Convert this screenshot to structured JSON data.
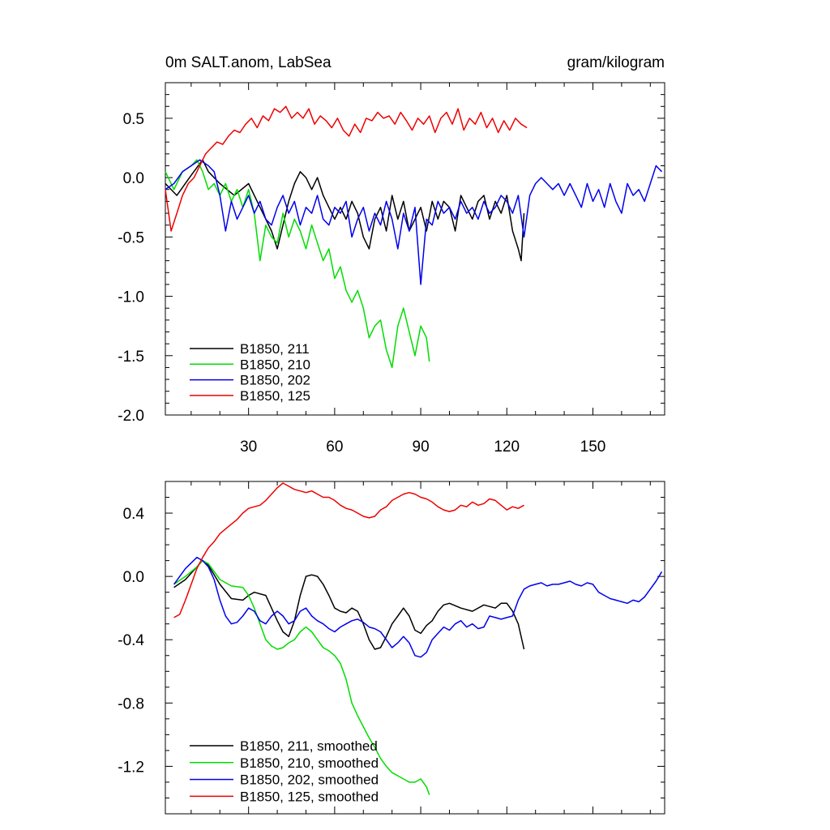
{
  "chart_data": [
    {
      "type": "line",
      "title_left": "0m SALT.anom, LabSea",
      "title_right": "gram/kilogram",
      "xlim": [
        1,
        175
      ],
      "ylim": [
        -2.0,
        0.8
      ],
      "x_ticks": [
        30,
        60,
        90,
        120,
        150
      ],
      "x_tick_labels": [
        "30",
        "60",
        "90",
        "120",
        "150"
      ],
      "y_ticks": [
        0.5,
        0.0,
        -0.5,
        -1.0,
        -1.5,
        -2.0
      ],
      "y_tick_labels": [
        "0.5",
        "0.0",
        "-0.5",
        "-1.0",
        "-1.5",
        "-2.0"
      ],
      "legend_position": "bottom-left",
      "series": [
        {
          "name": "B1850, 211",
          "color": "#000000",
          "x": [
            1,
            5,
            10,
            14,
            16,
            20,
            25,
            30,
            33,
            36,
            38,
            40,
            42,
            44,
            46,
            48,
            50,
            52,
            54,
            56,
            58,
            60,
            62,
            64,
            66,
            68,
            70,
            72,
            74,
            76,
            78,
            80,
            82,
            84,
            86,
            88,
            90,
            92,
            94,
            96,
            98,
            100,
            102,
            104,
            106,
            108,
            110,
            112,
            114,
            116,
            118,
            120,
            122,
            124,
            125,
            126
          ],
          "y": [
            -0.05,
            -0.15,
            0.02,
            0.15,
            0.05,
            -0.05,
            -0.15,
            -0.05,
            -0.2,
            -0.35,
            -0.45,
            -0.6,
            -0.4,
            -0.2,
            -0.05,
            0.05,
            0.0,
            -0.1,
            0.0,
            -0.15,
            -0.25,
            -0.35,
            -0.25,
            -0.35,
            -0.2,
            -0.3,
            -0.5,
            -0.6,
            -0.35,
            -0.25,
            -0.45,
            -0.15,
            -0.35,
            -0.2,
            -0.45,
            -0.35,
            -0.25,
            -0.45,
            -0.2,
            -0.35,
            -0.2,
            -0.25,
            -0.45,
            -0.15,
            -0.25,
            -0.35,
            -0.2,
            -0.15,
            -0.35,
            -0.2,
            -0.3,
            -0.15,
            -0.45,
            -0.6,
            -0.7,
            -0.3
          ]
        },
        {
          "name": "B1850, 210",
          "color": "#00dd00",
          "x": [
            1,
            4,
            7,
            10,
            12,
            14,
            16,
            18,
            20,
            22,
            24,
            26,
            28,
            30,
            32,
            34,
            36,
            38,
            40,
            42,
            44,
            46,
            48,
            50,
            52,
            54,
            56,
            58,
            60,
            62,
            64,
            66,
            68,
            70,
            72,
            74,
            76,
            78,
            80,
            82,
            84,
            86,
            88,
            90,
            92,
            93
          ],
          "y": [
            0.05,
            -0.1,
            0.05,
            0.1,
            0.15,
            0.05,
            -0.1,
            -0.05,
            -0.15,
            -0.05,
            -0.2,
            -0.1,
            -0.25,
            -0.1,
            -0.3,
            -0.7,
            -0.4,
            -0.5,
            -0.55,
            -0.3,
            -0.5,
            -0.35,
            -0.45,
            -0.6,
            -0.4,
            -0.55,
            -0.7,
            -0.6,
            -0.85,
            -0.75,
            -0.95,
            -1.05,
            -0.95,
            -1.1,
            -1.35,
            -1.25,
            -1.2,
            -1.45,
            -1.6,
            -1.25,
            -1.1,
            -1.3,
            -1.5,
            -1.25,
            -1.35,
            -1.55
          ]
        },
        {
          "name": "B1850, 202",
          "color": "#0000ee",
          "x": [
            1,
            4,
            7,
            10,
            13,
            16,
            18,
            20,
            22,
            24,
            26,
            28,
            30,
            32,
            34,
            36,
            38,
            40,
            42,
            44,
            46,
            48,
            50,
            52,
            54,
            56,
            58,
            60,
            62,
            64,
            66,
            68,
            70,
            72,
            74,
            76,
            78,
            80,
            82,
            84,
            86,
            88,
            90,
            92,
            94,
            96,
            98,
            100,
            102,
            104,
            106,
            108,
            110,
            112,
            114,
            116,
            118,
            120,
            122,
            124,
            126,
            128,
            130,
            132,
            134,
            136,
            138,
            140,
            142,
            144,
            146,
            148,
            150,
            152,
            154,
            156,
            158,
            160,
            162,
            164,
            166,
            168,
            170,
            172,
            174
          ],
          "y": [
            -0.1,
            -0.05,
            0.05,
            0.1,
            0.15,
            0.1,
            0.05,
            -0.15,
            -0.45,
            -0.2,
            -0.35,
            -0.25,
            -0.15,
            -0.3,
            -0.2,
            -0.35,
            -0.4,
            -0.25,
            -0.15,
            -0.3,
            -0.2,
            -0.4,
            -0.25,
            -0.3,
            -0.15,
            -0.35,
            -0.4,
            -0.25,
            -0.3,
            -0.2,
            -0.5,
            -0.35,
            -0.25,
            -0.45,
            -0.3,
            -0.4,
            -0.2,
            -0.35,
            -0.6,
            -0.3,
            -0.45,
            -0.25,
            -0.9,
            -0.35,
            -0.4,
            -0.2,
            -0.3,
            -0.25,
            -0.35,
            -0.2,
            -0.3,
            -0.25,
            -0.35,
            -0.2,
            -0.3,
            -0.25,
            -0.15,
            -0.2,
            -0.3,
            -0.15,
            -0.5,
            -0.15,
            -0.05,
            0.0,
            -0.05,
            -0.1,
            -0.05,
            -0.15,
            -0.05,
            -0.15,
            -0.25,
            -0.05,
            -0.2,
            -0.1,
            -0.25,
            -0.05,
            -0.2,
            -0.3,
            -0.05,
            -0.15,
            -0.1,
            -0.2,
            -0.05,
            0.1,
            0.05
          ]
        },
        {
          "name": "B1850, 125",
          "color": "#ee0000",
          "x": [
            1,
            3,
            5,
            7,
            9,
            11,
            13,
            15,
            17,
            19,
            21,
            23,
            25,
            27,
            29,
            31,
            33,
            35,
            37,
            39,
            41,
            43,
            45,
            47,
            49,
            51,
            53,
            55,
            57,
            59,
            61,
            63,
            65,
            67,
            69,
            71,
            73,
            75,
            77,
            79,
            81,
            83,
            85,
            87,
            89,
            91,
            93,
            95,
            97,
            99,
            101,
            103,
            105,
            107,
            109,
            111,
            113,
            115,
            117,
            119,
            121,
            123,
            125,
            127
          ],
          "y": [
            -0.1,
            -0.45,
            -0.3,
            -0.15,
            -0.05,
            0.0,
            0.1,
            0.2,
            0.25,
            0.3,
            0.28,
            0.35,
            0.4,
            0.38,
            0.45,
            0.5,
            0.42,
            0.52,
            0.48,
            0.58,
            0.55,
            0.6,
            0.5,
            0.55,
            0.5,
            0.58,
            0.45,
            0.52,
            0.48,
            0.42,
            0.5,
            0.4,
            0.35,
            0.45,
            0.38,
            0.5,
            0.48,
            0.55,
            0.5,
            0.52,
            0.45,
            0.55,
            0.48,
            0.4,
            0.5,
            0.45,
            0.52,
            0.38,
            0.5,
            0.55,
            0.45,
            0.58,
            0.4,
            0.5,
            0.45,
            0.55,
            0.42,
            0.5,
            0.38,
            0.48,
            0.4,
            0.5,
            0.45,
            0.42
          ]
        }
      ]
    },
    {
      "type": "line",
      "xlim": [
        1,
        175
      ],
      "ylim": [
        -1.5,
        0.6
      ],
      "x_ticks": [
        30,
        60,
        90,
        120,
        150
      ],
      "y_ticks": [
        0.4,
        0.0,
        -0.4,
        -0.8,
        -1.2
      ],
      "y_tick_labels": [
        "0.4",
        "0.0",
        "-0.4",
        "-0.8",
        "-1.2"
      ],
      "legend_position": "bottom-left",
      "series": [
        {
          "name": "B1850, 211, smoothed",
          "color": "#000000",
          "x": [
            4,
            8,
            12,
            14,
            16,
            20,
            24,
            28,
            30,
            32,
            36,
            40,
            42,
            44,
            46,
            48,
            50,
            52,
            54,
            56,
            58,
            60,
            62,
            64,
            66,
            68,
            70,
            72,
            74,
            76,
            78,
            80,
            82,
            84,
            86,
            88,
            90,
            92,
            94,
            96,
            98,
            100,
            104,
            108,
            112,
            116,
            118,
            120,
            122,
            124,
            126
          ],
          "y": [
            -0.07,
            -0.02,
            0.06,
            0.1,
            0.07,
            -0.05,
            -0.14,
            -0.15,
            -0.12,
            -0.1,
            -0.12,
            -0.28,
            -0.35,
            -0.38,
            -0.28,
            -0.12,
            0.0,
            0.01,
            0.0,
            -0.05,
            -0.12,
            -0.2,
            -0.22,
            -0.23,
            -0.2,
            -0.22,
            -0.3,
            -0.4,
            -0.46,
            -0.45,
            -0.38,
            -0.3,
            -0.25,
            -0.2,
            -0.25,
            -0.34,
            -0.36,
            -0.31,
            -0.28,
            -0.22,
            -0.18,
            -0.17,
            -0.2,
            -0.22,
            -0.18,
            -0.2,
            -0.17,
            -0.17,
            -0.22,
            -0.3,
            -0.46
          ]
        },
        {
          "name": "B1850, 210, smoothed",
          "color": "#00dd00",
          "x": [
            4,
            8,
            12,
            14,
            16,
            20,
            24,
            28,
            30,
            32,
            34,
            36,
            38,
            40,
            42,
            44,
            46,
            48,
            50,
            52,
            54,
            56,
            58,
            60,
            62,
            64,
            66,
            68,
            70,
            72,
            74,
            76,
            78,
            80,
            82,
            84,
            86,
            88,
            90,
            92,
            93
          ],
          "y": [
            -0.05,
            0.0,
            0.06,
            0.1,
            0.08,
            -0.02,
            -0.06,
            -0.07,
            -0.12,
            -0.2,
            -0.3,
            -0.4,
            -0.44,
            -0.46,
            -0.45,
            -0.42,
            -0.4,
            -0.35,
            -0.32,
            -0.35,
            -0.4,
            -0.45,
            -0.47,
            -0.5,
            -0.55,
            -0.65,
            -0.8,
            -0.88,
            -0.95,
            -1.02,
            -1.08,
            -1.15,
            -1.2,
            -1.24,
            -1.26,
            -1.28,
            -1.3,
            -1.3,
            -1.28,
            -1.33,
            -1.38
          ]
        },
        {
          "name": "B1850, 202, smoothed",
          "color": "#0000ee",
          "x": [
            4,
            8,
            12,
            14,
            16,
            18,
            20,
            22,
            24,
            26,
            28,
            30,
            32,
            34,
            36,
            38,
            40,
            42,
            44,
            46,
            48,
            50,
            52,
            54,
            56,
            58,
            60,
            62,
            64,
            66,
            68,
            70,
            72,
            74,
            76,
            78,
            80,
            82,
            84,
            86,
            88,
            90,
            92,
            94,
            96,
            98,
            100,
            102,
            104,
            106,
            108,
            110,
            112,
            114,
            116,
            118,
            120,
            122,
            124,
            126,
            128,
            130,
            132,
            134,
            136,
            138,
            140,
            142,
            144,
            146,
            148,
            150,
            152,
            154,
            156,
            158,
            160,
            162,
            164,
            166,
            168,
            170,
            172,
            174
          ],
          "y": [
            -0.05,
            0.05,
            0.12,
            0.1,
            0.06,
            -0.02,
            -0.15,
            -0.25,
            -0.3,
            -0.29,
            -0.25,
            -0.2,
            -0.22,
            -0.28,
            -0.3,
            -0.25,
            -0.22,
            -0.25,
            -0.3,
            -0.28,
            -0.22,
            -0.2,
            -0.25,
            -0.28,
            -0.3,
            -0.33,
            -0.35,
            -0.32,
            -0.3,
            -0.28,
            -0.27,
            -0.29,
            -0.32,
            -0.33,
            -0.35,
            -0.4,
            -0.45,
            -0.42,
            -0.38,
            -0.42,
            -0.5,
            -0.51,
            -0.48,
            -0.4,
            -0.36,
            -0.32,
            -0.34,
            -0.3,
            -0.28,
            -0.32,
            -0.3,
            -0.33,
            -0.32,
            -0.25,
            -0.26,
            -0.27,
            -0.26,
            -0.25,
            -0.15,
            -0.08,
            -0.06,
            -0.05,
            -0.04,
            -0.06,
            -0.05,
            -0.05,
            -0.04,
            -0.03,
            -0.05,
            -0.06,
            -0.04,
            -0.05,
            -0.1,
            -0.12,
            -0.14,
            -0.15,
            -0.16,
            -0.17,
            -0.15,
            -0.16,
            -0.13,
            -0.08,
            -0.03,
            0.03
          ]
        },
        {
          "name": "B1850, 125, smoothed",
          "color": "#ee0000",
          "x": [
            4,
            6,
            8,
            10,
            12,
            14,
            16,
            18,
            20,
            22,
            24,
            26,
            28,
            30,
            32,
            34,
            36,
            38,
            40,
            42,
            44,
            46,
            48,
            50,
            52,
            54,
            56,
            58,
            60,
            62,
            64,
            66,
            68,
            70,
            72,
            74,
            76,
            78,
            80,
            82,
            84,
            86,
            88,
            90,
            92,
            94,
            96,
            98,
            100,
            102,
            104,
            106,
            108,
            110,
            112,
            114,
            116,
            118,
            120,
            122,
            124,
            126
          ],
          "y": [
            -0.26,
            -0.24,
            -0.15,
            -0.05,
            0.05,
            0.12,
            0.18,
            0.22,
            0.27,
            0.3,
            0.33,
            0.36,
            0.4,
            0.43,
            0.44,
            0.45,
            0.48,
            0.52,
            0.56,
            0.59,
            0.57,
            0.55,
            0.54,
            0.53,
            0.54,
            0.52,
            0.5,
            0.5,
            0.48,
            0.45,
            0.43,
            0.42,
            0.4,
            0.38,
            0.37,
            0.38,
            0.42,
            0.44,
            0.48,
            0.5,
            0.52,
            0.53,
            0.52,
            0.5,
            0.49,
            0.47,
            0.44,
            0.42,
            0.41,
            0.42,
            0.45,
            0.44,
            0.47,
            0.45,
            0.46,
            0.49,
            0.48,
            0.45,
            0.42,
            0.44,
            0.43,
            0.45
          ]
        }
      ]
    }
  ]
}
